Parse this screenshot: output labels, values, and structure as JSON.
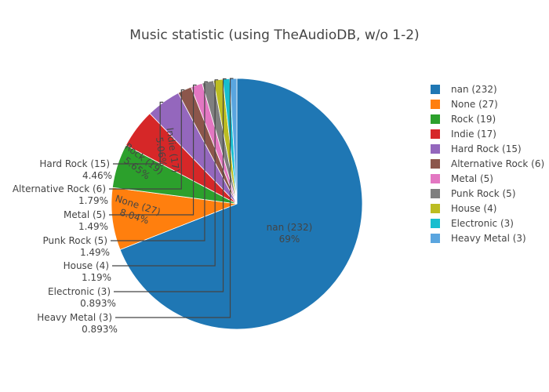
{
  "chart_data": {
    "type": "pie",
    "title": "Music statistic (using TheAudioDB, w/o 1-2)",
    "direction": "clockwise",
    "start": "top",
    "legend_position": "right",
    "slices": [
      {
        "label": "nan (232)",
        "value": 232,
        "percent": "69%",
        "color": "#1f77b4",
        "text_pos": "inside"
      },
      {
        "label": "None (27)",
        "value": 27,
        "percent": "8.04%",
        "color": "#ff7f0e",
        "text_pos": "inside"
      },
      {
        "label": "Rock (19)",
        "value": 19,
        "percent": "5.65%",
        "color": "#2ca02c",
        "text_pos": "inside"
      },
      {
        "label": "Indie (17)",
        "value": 17,
        "percent": "5.06%",
        "color": "#d62728",
        "text_pos": "inside"
      },
      {
        "label": "Hard Rock (15)",
        "value": 15,
        "percent": "4.46%",
        "color": "#9467bd",
        "text_pos": "outside"
      },
      {
        "label": "Alternative Rock (6)",
        "value": 6,
        "percent": "1.79%",
        "color": "#8c564b",
        "text_pos": "outside"
      },
      {
        "label": "Metal (5)",
        "value": 5,
        "percent": "1.49%",
        "color": "#e377c2",
        "text_pos": "outside"
      },
      {
        "label": "Punk Rock (5)",
        "value": 5,
        "percent": "1.49%",
        "color": "#7f7f7f",
        "text_pos": "outside"
      },
      {
        "label": "House (4)",
        "value": 4,
        "percent": "1.19%",
        "color": "#bcbd22",
        "text_pos": "outside"
      },
      {
        "label": "Electronic (3)",
        "value": 3,
        "percent": "0.893%",
        "color": "#17becf",
        "text_pos": "outside"
      },
      {
        "label": "Heavy Metal (3)",
        "value": 3,
        "percent": "0.893%",
        "color": "#5aa5df",
        "text_pos": "outside"
      }
    ]
  }
}
